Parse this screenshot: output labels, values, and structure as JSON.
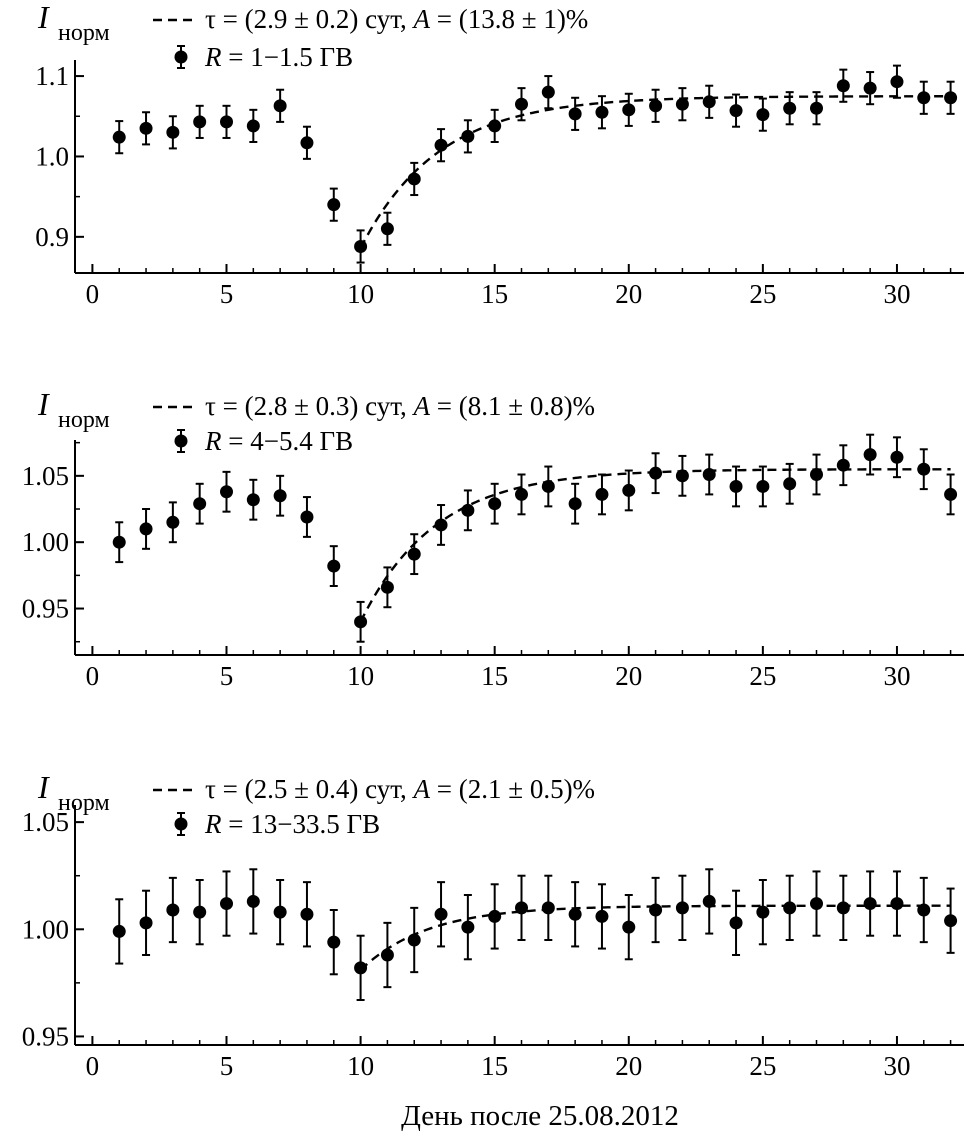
{
  "chart_data": [
    {
      "type": "scatter",
      "ylabel_main": "I",
      "ylabel_sub": "норм",
      "fit_label": "τ = (2.9 ± 0.2) сут, ",
      "fit_label_A": "A",
      "fit_label_rest": " = (13.8 ± 1)%",
      "data_label_R": "R",
      "data_label_rest": " = 1−1.5 ГВ",
      "xlim": [
        -0.5,
        32.5
      ],
      "ylim": [
        0.855,
        1.12
      ],
      "xticks": [
        0,
        5,
        10,
        15,
        20,
        25,
        30
      ],
      "xtick_labels": [
        "0",
        "5",
        "10",
        "15",
        "20",
        "25",
        "30"
      ],
      "yticks": [
        0.9,
        1.0,
        1.1
      ],
      "ytick_labels": [
        "0.9",
        "1.0",
        "1.1"
      ],
      "fit": {
        "x0": 10,
        "y0": 0.886,
        "amp": 0.189,
        "tau": 2.9,
        "xend": 32
      },
      "points": [
        {
          "x": 1,
          "y": 1.024,
          "err": 0.02
        },
        {
          "x": 2,
          "y": 1.035,
          "err": 0.02
        },
        {
          "x": 3,
          "y": 1.03,
          "err": 0.02
        },
        {
          "x": 4,
          "y": 1.043,
          "err": 0.02
        },
        {
          "x": 5,
          "y": 1.043,
          "err": 0.02
        },
        {
          "x": 6,
          "y": 1.038,
          "err": 0.02
        },
        {
          "x": 7,
          "y": 1.063,
          "err": 0.02
        },
        {
          "x": 8,
          "y": 1.017,
          "err": 0.02
        },
        {
          "x": 9,
          "y": 0.94,
          "err": 0.02
        },
        {
          "x": 10,
          "y": 0.888,
          "err": 0.02
        },
        {
          "x": 11,
          "y": 0.91,
          "err": 0.02
        },
        {
          "x": 12,
          "y": 0.972,
          "err": 0.02
        },
        {
          "x": 13,
          "y": 1.014,
          "err": 0.02
        },
        {
          "x": 14,
          "y": 1.025,
          "err": 0.02
        },
        {
          "x": 15,
          "y": 1.038,
          "err": 0.02
        },
        {
          "x": 16,
          "y": 1.065,
          "err": 0.02
        },
        {
          "x": 17,
          "y": 1.08,
          "err": 0.02
        },
        {
          "x": 18,
          "y": 1.053,
          "err": 0.02
        },
        {
          "x": 19,
          "y": 1.055,
          "err": 0.02
        },
        {
          "x": 20,
          "y": 1.058,
          "err": 0.02
        },
        {
          "x": 21,
          "y": 1.063,
          "err": 0.02
        },
        {
          "x": 22,
          "y": 1.065,
          "err": 0.02
        },
        {
          "x": 23,
          "y": 1.068,
          "err": 0.02
        },
        {
          "x": 24,
          "y": 1.057,
          "err": 0.02
        },
        {
          "x": 25,
          "y": 1.052,
          "err": 0.02
        },
        {
          "x": 26,
          "y": 1.06,
          "err": 0.02
        },
        {
          "x": 27,
          "y": 1.06,
          "err": 0.02
        },
        {
          "x": 28,
          "y": 1.088,
          "err": 0.02
        },
        {
          "x": 29,
          "y": 1.085,
          "err": 0.02
        },
        {
          "x": 30,
          "y": 1.093,
          "err": 0.02
        },
        {
          "x": 31,
          "y": 1.073,
          "err": 0.02
        },
        {
          "x": 32,
          "y": 1.073,
          "err": 0.02
        }
      ]
    },
    {
      "type": "scatter",
      "ylabel_main": "I",
      "ylabel_sub": "норм",
      "fit_label": "τ = (2.8 ± 0.3) сут, ",
      "fit_label_A": "A",
      "fit_label_rest": " = (8.1 ± 0.8)%",
      "data_label_R": "R",
      "data_label_rest": " = 4−5.4 ГВ",
      "xlim": [
        -0.5,
        32.5
      ],
      "ylim": [
        0.915,
        1.077
      ],
      "xticks": [
        0,
        5,
        10,
        15,
        20,
        25,
        30
      ],
      "xtick_labels": [
        "0",
        "5",
        "10",
        "15",
        "20",
        "25",
        "30"
      ],
      "yticks": [
        0.95,
        1.0,
        1.05
      ],
      "ytick_labels": [
        "0.95",
        "1.00",
        "1.05"
      ],
      "fit": {
        "x0": 10,
        "y0": 0.94,
        "amp": 0.115,
        "tau": 2.8,
        "xend": 32
      },
      "points": [
        {
          "x": 1,
          "y": 1.0,
          "err": 0.015
        },
        {
          "x": 2,
          "y": 1.01,
          "err": 0.015
        },
        {
          "x": 3,
          "y": 1.015,
          "err": 0.015
        },
        {
          "x": 4,
          "y": 1.029,
          "err": 0.015
        },
        {
          "x": 5,
          "y": 1.038,
          "err": 0.015
        },
        {
          "x": 6,
          "y": 1.032,
          "err": 0.015
        },
        {
          "x": 7,
          "y": 1.035,
          "err": 0.015
        },
        {
          "x": 8,
          "y": 1.019,
          "err": 0.015
        },
        {
          "x": 9,
          "y": 0.982,
          "err": 0.015
        },
        {
          "x": 10,
          "y": 0.94,
          "err": 0.015
        },
        {
          "x": 11,
          "y": 0.966,
          "err": 0.015
        },
        {
          "x": 12,
          "y": 0.991,
          "err": 0.015
        },
        {
          "x": 13,
          "y": 1.013,
          "err": 0.015
        },
        {
          "x": 14,
          "y": 1.024,
          "err": 0.015
        },
        {
          "x": 15,
          "y": 1.029,
          "err": 0.015
        },
        {
          "x": 16,
          "y": 1.036,
          "err": 0.015
        },
        {
          "x": 17,
          "y": 1.042,
          "err": 0.015
        },
        {
          "x": 18,
          "y": 1.029,
          "err": 0.015
        },
        {
          "x": 19,
          "y": 1.036,
          "err": 0.015
        },
        {
          "x": 20,
          "y": 1.039,
          "err": 0.015
        },
        {
          "x": 21,
          "y": 1.052,
          "err": 0.015
        },
        {
          "x": 22,
          "y": 1.05,
          "err": 0.015
        },
        {
          "x": 23,
          "y": 1.051,
          "err": 0.015
        },
        {
          "x": 24,
          "y": 1.042,
          "err": 0.015
        },
        {
          "x": 25,
          "y": 1.042,
          "err": 0.015
        },
        {
          "x": 26,
          "y": 1.044,
          "err": 0.015
        },
        {
          "x": 27,
          "y": 1.051,
          "err": 0.015
        },
        {
          "x": 28,
          "y": 1.058,
          "err": 0.015
        },
        {
          "x": 29,
          "y": 1.066,
          "err": 0.015
        },
        {
          "x": 30,
          "y": 1.064,
          "err": 0.015
        },
        {
          "x": 31,
          "y": 1.055,
          "err": 0.015
        },
        {
          "x": 32,
          "y": 1.036,
          "err": 0.015
        }
      ]
    },
    {
      "type": "scatter",
      "ylabel_main": "I",
      "ylabel_sub": "норм",
      "fit_label": "τ = (2.5 ± 0.4) сут, ",
      "fit_label_A": "A",
      "fit_label_rest": " = (2.1 ± 0.5)%",
      "data_label_R": "R",
      "data_label_rest": " = 13−33.5 ГВ",
      "xlabel": "День после 25.08.2012",
      "xlim": [
        -0.5,
        32.5
      ],
      "ylim": [
        0.946,
        1.058
      ],
      "xticks": [
        0,
        5,
        10,
        15,
        20,
        25,
        30
      ],
      "xtick_labels": [
        "0",
        "5",
        "10",
        "15",
        "20",
        "25",
        "30"
      ],
      "yticks": [
        0.95,
        1.0,
        1.05
      ],
      "ytick_labels": [
        "0.95",
        "1.00",
        "1.05"
      ],
      "fit": {
        "x0": 10,
        "y0": 0.981,
        "amp": 0.03,
        "tau": 2.5,
        "xend": 32
      },
      "points": [
        {
          "x": 1,
          "y": 0.999,
          "err": 0.015
        },
        {
          "x": 2,
          "y": 1.003,
          "err": 0.015
        },
        {
          "x": 3,
          "y": 1.009,
          "err": 0.015
        },
        {
          "x": 4,
          "y": 1.008,
          "err": 0.015
        },
        {
          "x": 5,
          "y": 1.012,
          "err": 0.015
        },
        {
          "x": 6,
          "y": 1.013,
          "err": 0.015
        },
        {
          "x": 7,
          "y": 1.008,
          "err": 0.015
        },
        {
          "x": 8,
          "y": 1.007,
          "err": 0.015
        },
        {
          "x": 9,
          "y": 0.994,
          "err": 0.015
        },
        {
          "x": 10,
          "y": 0.982,
          "err": 0.015
        },
        {
          "x": 11,
          "y": 0.988,
          "err": 0.015
        },
        {
          "x": 12,
          "y": 0.995,
          "err": 0.015
        },
        {
          "x": 13,
          "y": 1.007,
          "err": 0.015
        },
        {
          "x": 14,
          "y": 1.001,
          "err": 0.015
        },
        {
          "x": 15,
          "y": 1.006,
          "err": 0.015
        },
        {
          "x": 16,
          "y": 1.01,
          "err": 0.015
        },
        {
          "x": 17,
          "y": 1.01,
          "err": 0.015
        },
        {
          "x": 18,
          "y": 1.007,
          "err": 0.015
        },
        {
          "x": 19,
          "y": 1.006,
          "err": 0.015
        },
        {
          "x": 20,
          "y": 1.001,
          "err": 0.015
        },
        {
          "x": 21,
          "y": 1.009,
          "err": 0.015
        },
        {
          "x": 22,
          "y": 1.01,
          "err": 0.015
        },
        {
          "x": 23,
          "y": 1.013,
          "err": 0.015
        },
        {
          "x": 24,
          "y": 1.003,
          "err": 0.015
        },
        {
          "x": 25,
          "y": 1.008,
          "err": 0.015
        },
        {
          "x": 26,
          "y": 1.01,
          "err": 0.015
        },
        {
          "x": 27,
          "y": 1.012,
          "err": 0.015
        },
        {
          "x": 28,
          "y": 1.01,
          "err": 0.015
        },
        {
          "x": 29,
          "y": 1.012,
          "err": 0.015
        },
        {
          "x": 30,
          "y": 1.012,
          "err": 0.015
        },
        {
          "x": 31,
          "y": 1.009,
          "err": 0.015
        },
        {
          "x": 32,
          "y": 1.004,
          "err": 0.015
        }
      ]
    }
  ]
}
